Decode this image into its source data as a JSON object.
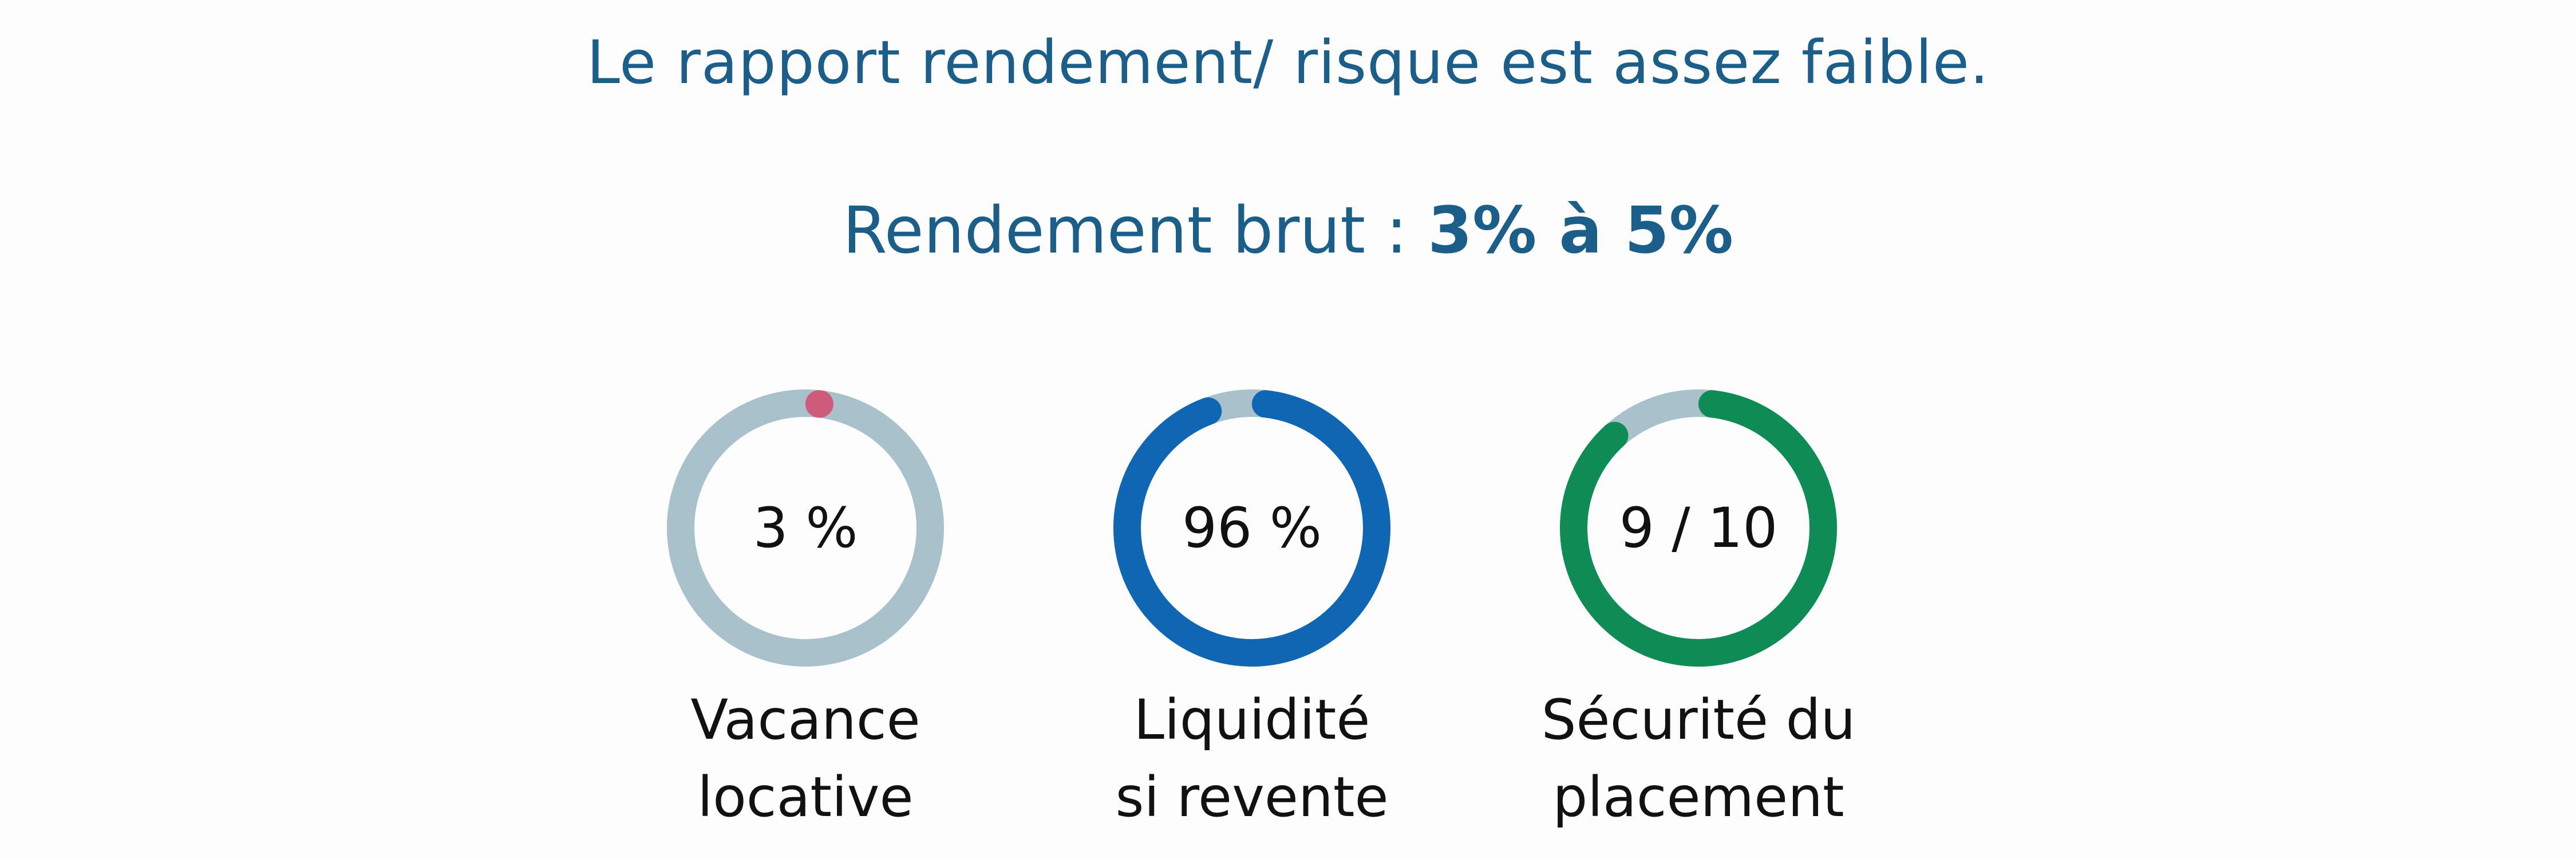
{
  "header": {
    "line1": "Le rapport rendement/ risque est assez faible.",
    "line2_prefix": "Rendement brut : ",
    "line2_value": "3% à 5%",
    "text_color": "#1b5e8a"
  },
  "chart_data": [
    {
      "type": "pie",
      "label_lines": [
        "Vacance",
        "locative"
      ],
      "value_text": "3 %",
      "value": 3,
      "max": 100,
      "color": "#cf5b7b",
      "track_color": "#a8c1cb"
    },
    {
      "type": "pie",
      "label_lines": [
        "Liquidité",
        "si revente"
      ],
      "value_text": "96 %",
      "value": 96,
      "max": 100,
      "color": "#0f66b2",
      "track_color": "#a8c1cb"
    },
    {
      "type": "pie",
      "label_lines": [
        "Sécurité du",
        "placement"
      ],
      "value_text": "9 / 10",
      "value": 9,
      "max": 10,
      "color": "#0f8c56",
      "track_color": "#a8c1cb"
    }
  ]
}
